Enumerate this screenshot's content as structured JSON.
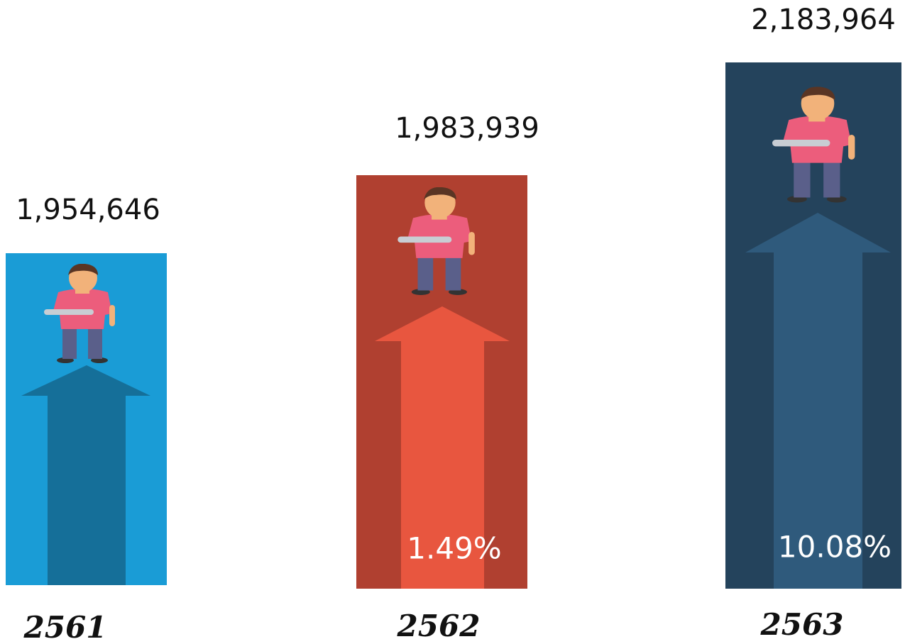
{
  "items": [
    {
      "year": "2561",
      "value": "1,954,646"
    },
    {
      "year": "2562",
      "value": "1,983,939",
      "change": "1.49%"
    },
    {
      "year": "2563",
      "value": "2,183,964",
      "change": "10.08%"
    }
  ]
}
